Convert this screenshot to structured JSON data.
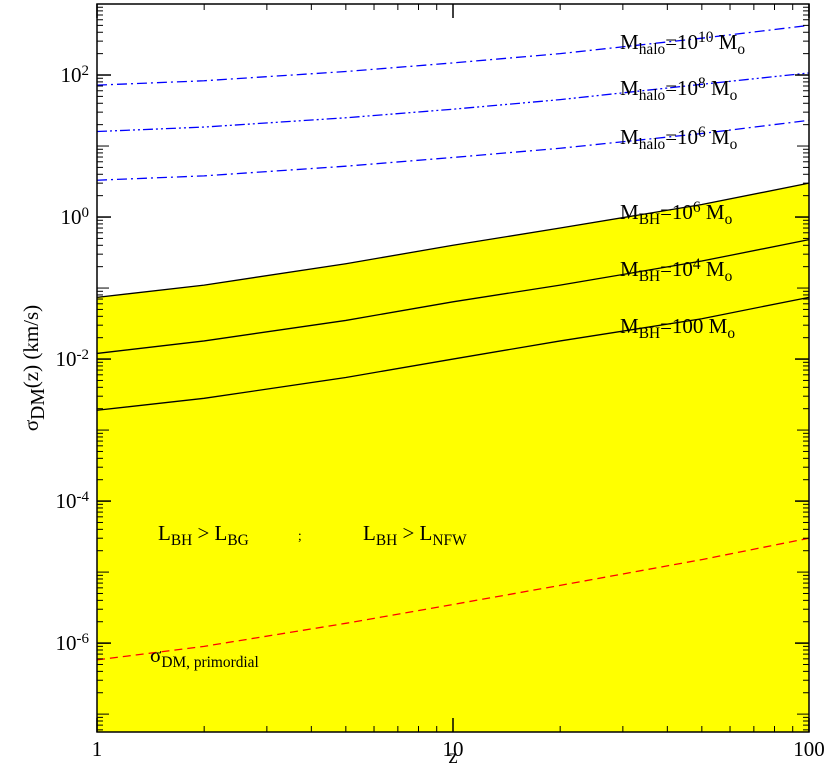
{
  "chart_data": {
    "type": "line",
    "xlabel": "z",
    "ylabel": [
      {
        "t": "σ"
      },
      {
        "t": "DM",
        "s": "sub"
      },
      {
        "t": "(z) (km/s)"
      }
    ],
    "xscale": "log",
    "yscale": "log",
    "xlim": [
      1,
      100
    ],
    "ylim": [
      5.6e-08,
      1000
    ],
    "xticks": [
      1,
      10,
      100
    ],
    "yticks": [
      {
        "value": 1e-06,
        "label": "10",
        "power": "-6"
      },
      {
        "value": 0.0001,
        "label": "10",
        "power": "-4"
      },
      {
        "value": 0.01,
        "label": "10",
        "power": "-2"
      },
      {
        "value": 1,
        "label": "10",
        "power": "0"
      },
      {
        "value": 100,
        "label": "10",
        "power": "2"
      }
    ],
    "x": [
      1,
      2,
      5,
      10,
      20,
      50,
      100
    ],
    "series": [
      {
        "color": "#0000ff",
        "dash": "dashdot",
        "values": [
          72,
          83,
          112,
          148,
          200,
          330,
          500
        ]
      },
      {
        "color": "#0000ff",
        "dash": "dashdotdot",
        "values": [
          16,
          18.5,
          25,
          33,
          45,
          74,
          107
        ]
      },
      {
        "color": "#0000ff",
        "dash": "dashdot",
        "values": [
          3.3,
          3.8,
          5.2,
          6.9,
          9.3,
          15,
          23
        ]
      },
      {
        "color": "#000000",
        "dash": "solid",
        "fill": "#ffff00",
        "values": [
          0.074,
          0.11,
          0.22,
          0.4,
          0.7,
          1.5,
          3.0
        ]
      },
      {
        "color": "#000000",
        "dash": "solid",
        "values": [
          0.012,
          0.018,
          0.035,
          0.064,
          0.11,
          0.24,
          0.48
        ]
      },
      {
        "color": "#000000",
        "dash": "solid",
        "values": [
          0.0019,
          0.0028,
          0.0055,
          0.01,
          0.018,
          0.037,
          0.074
        ]
      },
      {
        "color": "#ff0000",
        "dash": "dashed",
        "values": [
          5.8e-07,
          9e-07,
          1.9e-06,
          3.5e-06,
          6.5e-06,
          1.5e-05,
          3e-05
        ]
      }
    ],
    "annotations": [
      [
        {
          "t": "M"
        },
        {
          "t": "halo",
          "s": "sub"
        },
        {
          "t": "=10"
        },
        {
          "t": "10",
          "s": "sup"
        },
        {
          "t": " M"
        },
        {
          "t": "o",
          "s": "sub"
        }
      ],
      [
        {
          "t": "M"
        },
        {
          "t": "halo",
          "s": "sub"
        },
        {
          "t": "=10"
        },
        {
          "t": "8",
          "s": "sup"
        },
        {
          "t": " M"
        },
        {
          "t": "o",
          "s": "sub"
        }
      ],
      [
        {
          "t": "M"
        },
        {
          "t": "halo",
          "s": "sub"
        },
        {
          "t": "=10"
        },
        {
          "t": "6",
          "s": "sup"
        },
        {
          "t": " M"
        },
        {
          "t": "o",
          "s": "sub"
        }
      ],
      [
        {
          "t": "M"
        },
        {
          "t": "BH",
          "s": "sub"
        },
        {
          "t": "=10"
        },
        {
          "t": "6",
          "s": "sup"
        },
        {
          "t": " M"
        },
        {
          "t": "o",
          "s": "sub"
        }
      ],
      [
        {
          "t": "M"
        },
        {
          "t": "BH",
          "s": "sub"
        },
        {
          "t": "=10"
        },
        {
          "t": "4",
          "s": "sup"
        },
        {
          "t": " M"
        },
        {
          "t": "o",
          "s": "sub"
        }
      ],
      [
        {
          "t": "M"
        },
        {
          "t": "BH",
          "s": "sub"
        },
        {
          "t": "=100 M"
        },
        {
          "t": "o",
          "s": "sub"
        }
      ],
      [
        {
          "t": "L"
        },
        {
          "t": "BH",
          "s": "sub"
        },
        {
          "t": " > L"
        },
        {
          "t": "BG",
          "s": "sub"
        }
      ],
      [
        {
          "t": ";",
          "s": "small"
        }
      ],
      [
        {
          "t": "L"
        },
        {
          "t": "BH",
          "s": "sub"
        },
        {
          "t": " > L"
        },
        {
          "t": "NFW",
          "s": "sub"
        }
      ],
      [
        {
          "t": "σ"
        },
        {
          "t": "DM, primordial",
          "s": "sub"
        }
      ]
    ]
  }
}
